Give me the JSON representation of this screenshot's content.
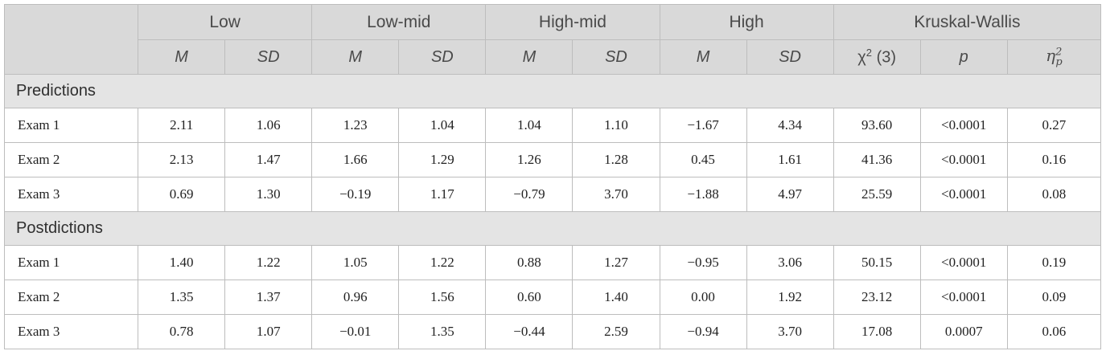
{
  "groups": [
    "Low",
    "Low-mid",
    "High-mid",
    "High",
    "Kruskal-Wallis"
  ],
  "subheaders": {
    "m": "M",
    "sd": "SD",
    "chi": "χ",
    "chi_sup": "2",
    "chi_df": "(3)",
    "p": "p",
    "eta": "η",
    "eta_sup": "2",
    "eta_sub": "p"
  },
  "sections": [
    {
      "title": "Predictions",
      "rows": [
        {
          "label": "Exam 1",
          "values": [
            "2.11",
            "1.06",
            "1.23",
            "1.04",
            "1.04",
            "1.10",
            "−1.67",
            "4.34",
            "93.60",
            "<0.0001",
            "0.27"
          ]
        },
        {
          "label": "Exam 2",
          "values": [
            "2.13",
            "1.47",
            "1.66",
            "1.29",
            "1.26",
            "1.28",
            "0.45",
            "1.61",
            "41.36",
            "<0.0001",
            "0.16"
          ]
        },
        {
          "label": "Exam 3",
          "values": [
            "0.69",
            "1.30",
            "−0.19",
            "1.17",
            "−0.79",
            "3.70",
            "−1.88",
            "4.97",
            "25.59",
            "<0.0001",
            "0.08"
          ]
        }
      ]
    },
    {
      "title": "Postdictions",
      "rows": [
        {
          "label": "Exam 1",
          "values": [
            "1.40",
            "1.22",
            "1.05",
            "1.22",
            "0.88",
            "1.27",
            "−0.95",
            "3.06",
            "50.15",
            "<0.0001",
            "0.19"
          ]
        },
        {
          "label": "Exam 2",
          "values": [
            "1.35",
            "1.37",
            "0.96",
            "1.56",
            "0.60",
            "1.40",
            "0.00",
            "1.92",
            "23.12",
            "<0.0001",
            "0.09"
          ]
        },
        {
          "label": "Exam 3",
          "values": [
            "0.78",
            "1.07",
            "−0.01",
            "1.35",
            "−0.44",
            "2.59",
            "−0.94",
            "3.70",
            "17.08",
            "0.0007",
            "0.06"
          ]
        }
      ]
    }
  ]
}
